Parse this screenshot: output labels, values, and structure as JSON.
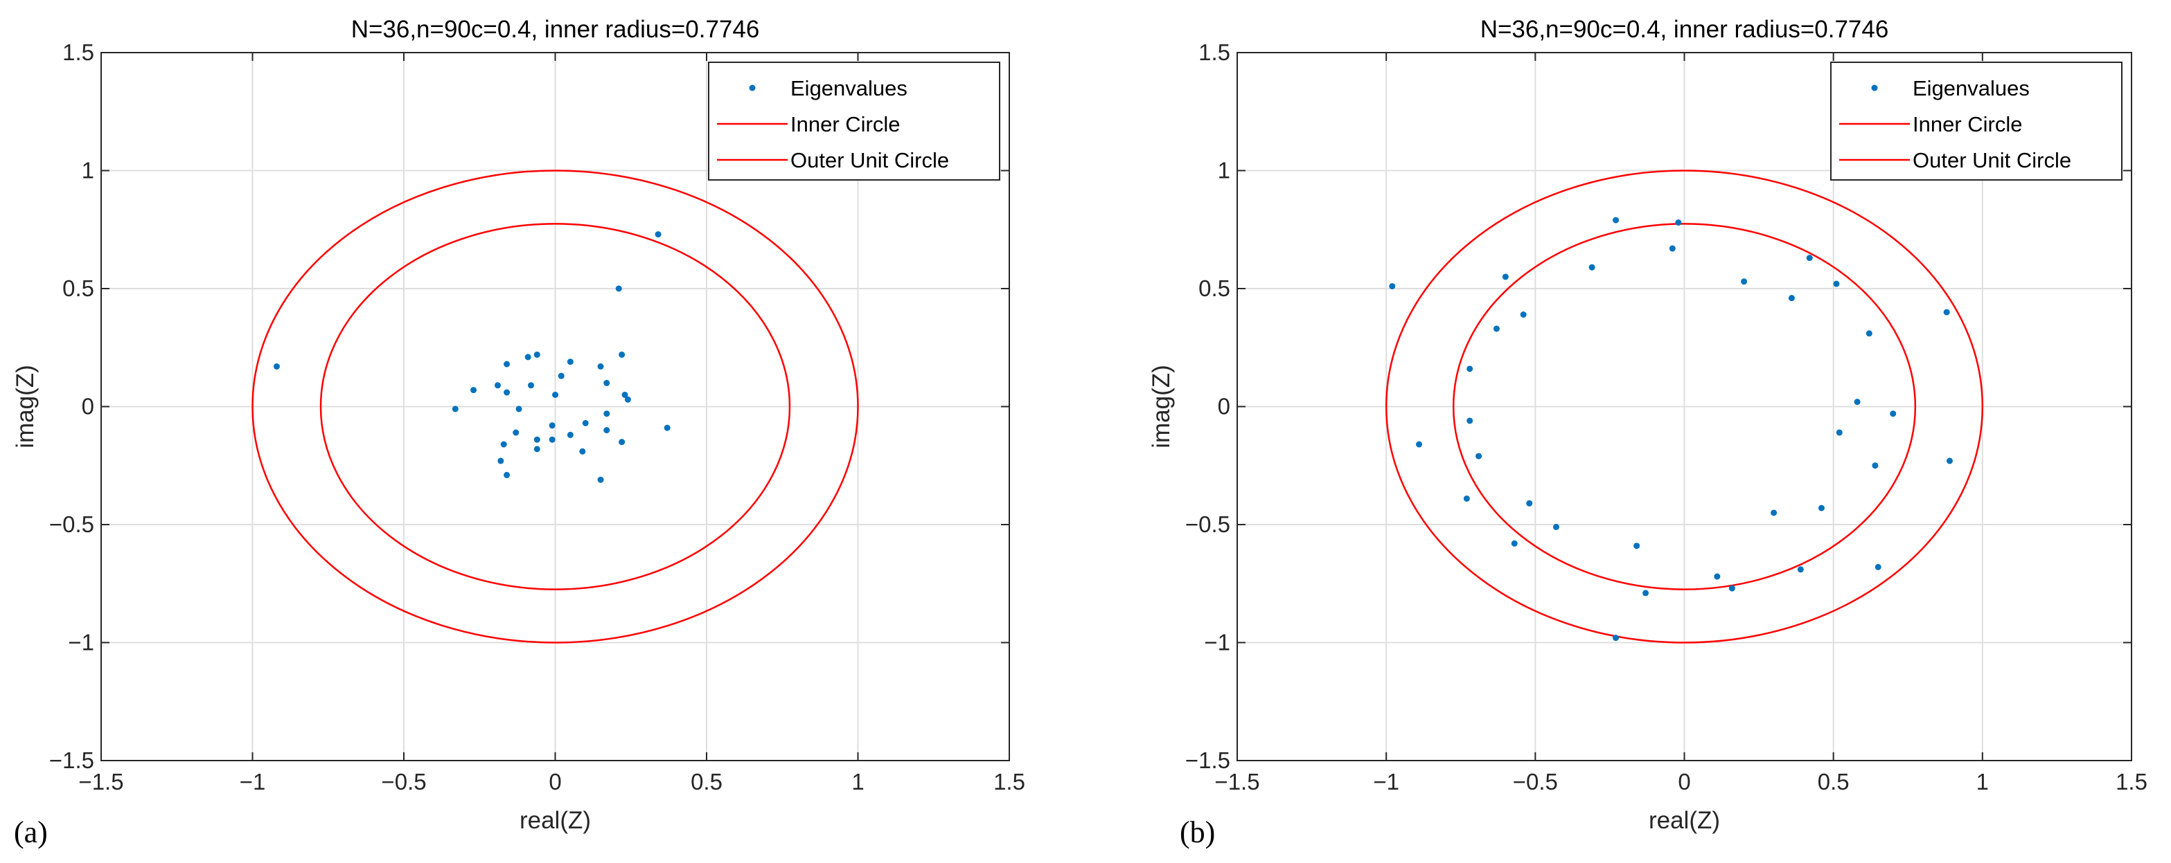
{
  "chart_data": [
    {
      "type": "scatter",
      "panel_label": "(a)",
      "title": "N=36,n=90c=0.4, inner radius=0.7746",
      "xlabel": "real(Z)",
      "ylabel": "imag(Z)",
      "xlim": [
        -1.5,
        1.5
      ],
      "ylim": [
        -1.5,
        1.5
      ],
      "xticks": [
        -1.5,
        -1,
        -0.5,
        0,
        0.5,
        1,
        1.5
      ],
      "yticks": [
        -1.5,
        -1,
        -0.5,
        0,
        0.5,
        1,
        1.5
      ],
      "xtick_labels": [
        "−1.5",
        "−1",
        "−0.5",
        "0",
        "0.5",
        "1",
        "1.5"
      ],
      "ytick_labels": [
        "−1.5",
        "−1",
        "−0.5",
        "0",
        "0.5",
        "1",
        "1.5"
      ],
      "grid": true,
      "legend": {
        "position": "top-right",
        "entries": [
          "Eigenvalues",
          "Inner Circle",
          "Outer Unit Circle"
        ]
      },
      "circles": [
        {
          "name": "Inner Circle",
          "radius": 0.7746
        },
        {
          "name": "Outer Unit Circle",
          "radius": 1.0
        }
      ],
      "series": [
        {
          "name": "Eigenvalues",
          "points": [
            [
              -0.92,
              0.17
            ],
            [
              0.34,
              0.73
            ],
            [
              0.21,
              0.5
            ],
            [
              -0.09,
              0.21
            ],
            [
              -0.06,
              0.22
            ],
            [
              -0.16,
              0.18
            ],
            [
              0.05,
              0.19
            ],
            [
              0.15,
              0.17
            ],
            [
              0.22,
              0.22
            ],
            [
              0.02,
              0.13
            ],
            [
              -0.08,
              0.09
            ],
            [
              -0.19,
              0.09
            ],
            [
              0.17,
              0.1
            ],
            [
              -0.27,
              0.07
            ],
            [
              -0.16,
              0.06
            ],
            [
              0.23,
              0.05
            ],
            [
              0.24,
              0.03
            ],
            [
              0.0,
              0.05
            ],
            [
              -0.33,
              -0.01
            ],
            [
              -0.12,
              -0.01
            ],
            [
              0.17,
              -0.03
            ],
            [
              0.1,
              -0.07
            ],
            [
              -0.01,
              -0.08
            ],
            [
              0.37,
              -0.09
            ],
            [
              0.17,
              -0.1
            ],
            [
              -0.13,
              -0.11
            ],
            [
              0.05,
              -0.12
            ],
            [
              -0.01,
              -0.14
            ],
            [
              -0.06,
              -0.14
            ],
            [
              0.22,
              -0.15
            ],
            [
              -0.17,
              -0.16
            ],
            [
              -0.06,
              -0.18
            ],
            [
              0.09,
              -0.19
            ],
            [
              -0.18,
              -0.23
            ],
            [
              -0.16,
              -0.29
            ],
            [
              0.15,
              -0.31
            ]
          ]
        }
      ]
    },
    {
      "type": "scatter",
      "panel_label": "(b)",
      "title": "N=36,n=90c=0.4, inner radius=0.7746",
      "xlabel": "real(Z)",
      "ylabel": "imag(Z)",
      "xlim": [
        -1.5,
        1.5
      ],
      "ylim": [
        -1.5,
        1.5
      ],
      "xticks": [
        -1.5,
        -1,
        -0.5,
        0,
        0.5,
        1,
        1.5
      ],
      "yticks": [
        -1.5,
        -1,
        -0.5,
        0,
        0.5,
        1,
        1.5
      ],
      "xtick_labels": [
        "−1.5",
        "−1",
        "−0.5",
        "0",
        "0.5",
        "1",
        "1.5"
      ],
      "ytick_labels": [
        "−1.5",
        "−1",
        "−0.5",
        "0",
        "0.5",
        "1",
        "1.5"
      ],
      "grid": true,
      "legend": {
        "position": "top-right",
        "entries": [
          "Eigenvalues",
          "Inner Circle",
          "Outer Unit Circle"
        ]
      },
      "circles": [
        {
          "name": "Inner Circle",
          "radius": 0.7746
        },
        {
          "name": "Outer Unit Circle",
          "radius": 1.0
        }
      ],
      "series": [
        {
          "name": "Eigenvalues",
          "points": [
            [
              -0.23,
              0.79
            ],
            [
              -0.02,
              0.78
            ],
            [
              -0.04,
              0.67
            ],
            [
              0.42,
              0.63
            ],
            [
              -0.31,
              0.59
            ],
            [
              -0.6,
              0.55
            ],
            [
              0.2,
              0.53
            ],
            [
              0.51,
              0.52
            ],
            [
              -0.98,
              0.51
            ],
            [
              0.36,
              0.46
            ],
            [
              0.88,
              0.4
            ],
            [
              -0.54,
              0.39
            ],
            [
              -0.63,
              0.33
            ],
            [
              0.62,
              0.31
            ],
            [
              -0.72,
              0.16
            ],
            [
              0.58,
              0.02
            ],
            [
              0.7,
              -0.03
            ],
            [
              -0.72,
              -0.06
            ],
            [
              0.52,
              -0.11
            ],
            [
              -0.89,
              -0.16
            ],
            [
              -0.69,
              -0.21
            ],
            [
              0.89,
              -0.23
            ],
            [
              0.64,
              -0.25
            ],
            [
              -0.73,
              -0.39
            ],
            [
              -0.52,
              -0.41
            ],
            [
              0.46,
              -0.43
            ],
            [
              0.3,
              -0.45
            ],
            [
              -0.43,
              -0.51
            ],
            [
              -0.57,
              -0.58
            ],
            [
              -0.16,
              -0.59
            ],
            [
              0.39,
              -0.69
            ],
            [
              0.65,
              -0.68
            ],
            [
              0.11,
              -0.72
            ],
            [
              0.16,
              -0.77
            ],
            [
              -0.13,
              -0.79
            ],
            [
              -0.23,
              -0.98
            ]
          ]
        }
      ]
    }
  ]
}
